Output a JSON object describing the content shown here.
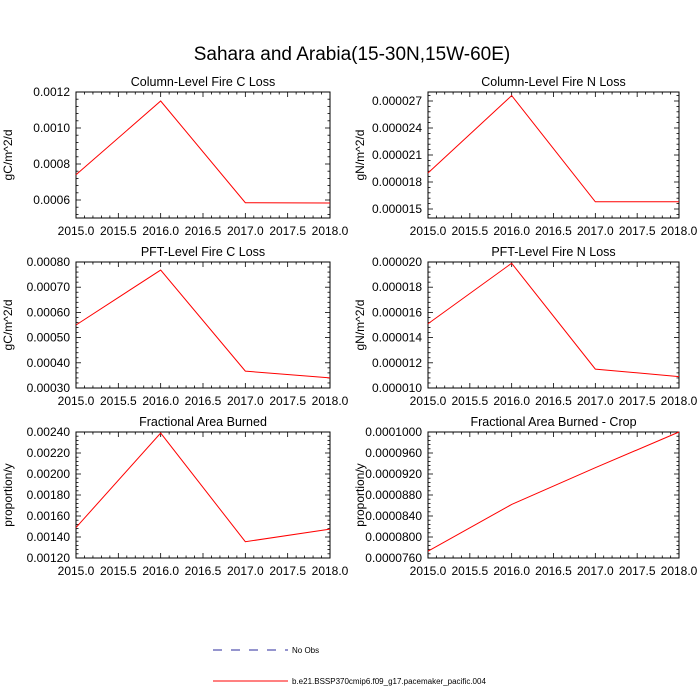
{
  "figure": {
    "title": "Sahara and Arabia(15-30N,15W-60E)"
  },
  "legend": {
    "entries": [
      {
        "label": "No Obs",
        "style": "dashed",
        "color": "#2b2b9e"
      },
      {
        "label": "b.e21.BSSP370cmip6.f09_g17.pacemaker_pacific.004",
        "style": "solid",
        "color": "#ff0000"
      }
    ]
  },
  "chart_data": [
    {
      "type": "line",
      "title": "Column-Level Fire C Loss",
      "ylabel": "gC/m^2/d",
      "xlim": [
        2015.0,
        2018.0
      ],
      "ylim": [
        0.0005,
        0.0012
      ],
      "xticks": [
        "2015.0",
        "2015.5",
        "2016.0",
        "2016.5",
        "2017.0",
        "2017.5",
        "2018.0"
      ],
      "yticks": [
        "0.0006",
        "0.0008",
        "0.0010",
        "0.0012"
      ],
      "yticks_values": [
        0.0006,
        0.0008,
        0.001,
        0.0012
      ],
      "x": [
        2015,
        2016,
        2017,
        2018
      ],
      "series": [
        {
          "color": "#ff0000",
          "values": [
            0.00074,
            0.00115,
            0.000585,
            0.000583
          ]
        }
      ]
    },
    {
      "type": "line",
      "title": "Column-Level Fire N Loss",
      "ylabel": "gN/m^2/d",
      "xlim": [
        2015.0,
        2018.0
      ],
      "ylim": [
        1.4e-05,
        2.8e-05
      ],
      "xticks": [
        "2015.0",
        "2015.5",
        "2016.0",
        "2016.5",
        "2017.0",
        "2017.5",
        "2018.0"
      ],
      "yticks": [
        "0.000015",
        "0.000018",
        "0.000021",
        "0.000024",
        "0.000027"
      ],
      "yticks_values": [
        1.5e-05,
        1.8e-05,
        2.1e-05,
        2.4e-05,
        2.7e-05
      ],
      "x": [
        2015,
        2016,
        2017,
        2018
      ],
      "series": [
        {
          "color": "#ff0000",
          "values": [
            1.9e-05,
            2.76e-05,
            1.58e-05,
            1.58e-05
          ]
        }
      ]
    },
    {
      "type": "line",
      "title": "PFT-Level Fire C Loss",
      "ylabel": "gC/m^2/d",
      "xlim": [
        2015.0,
        2018.0
      ],
      "ylim": [
        0.0003,
        0.0008
      ],
      "xticks": [
        "2015.0",
        "2015.5",
        "2016.0",
        "2016.5",
        "2017.0",
        "2017.5",
        "2018.0"
      ],
      "yticks": [
        "0.00030",
        "0.00040",
        "0.00050",
        "0.00060",
        "0.00070",
        "0.00080"
      ],
      "yticks_values": [
        0.0003,
        0.0004,
        0.0005,
        0.0006,
        0.0007,
        0.0008
      ],
      "x": [
        2015,
        2016,
        2017,
        2018
      ],
      "series": [
        {
          "color": "#ff0000",
          "values": [
            0.00055,
            0.000768,
            0.000367,
            0.00034
          ]
        }
      ]
    },
    {
      "type": "line",
      "title": "PFT-Level Fire N Loss",
      "ylabel": "gN/m^2/d",
      "xlim": [
        2015.0,
        2018.0
      ],
      "ylim": [
        1e-05,
        2e-05
      ],
      "xticks": [
        "2015.0",
        "2015.5",
        "2016.0",
        "2016.5",
        "2017.0",
        "2017.5",
        "2018.0"
      ],
      "yticks": [
        "0.000010",
        "0.000012",
        "0.000014",
        "0.000016",
        "0.000018",
        "0.000020"
      ],
      "yticks_values": [
        1e-05,
        1.2e-05,
        1.4e-05,
        1.6e-05,
        1.8e-05,
        2e-05
      ],
      "x": [
        2015,
        2016,
        2017,
        2018
      ],
      "series": [
        {
          "color": "#ff0000",
          "values": [
            1.51e-05,
            1.99e-05,
            1.15e-05,
            1.09e-05
          ]
        }
      ]
    },
    {
      "type": "line",
      "title": "Fractional Area Burned",
      "ylabel": "proportion/y",
      "xlim": [
        2015.0,
        2018.0
      ],
      "ylim": [
        0.0012,
        0.0024
      ],
      "xticks": [
        "2015.0",
        "2015.5",
        "2016.0",
        "2016.5",
        "2017.0",
        "2017.5",
        "2018.0"
      ],
      "yticks": [
        "0.00120",
        "0.00140",
        "0.00160",
        "0.00180",
        "0.00200",
        "0.00220",
        "0.00240"
      ],
      "yticks_values": [
        0.0012,
        0.0014,
        0.0016,
        0.0018,
        0.002,
        0.0022,
        0.0024
      ],
      "x": [
        2015,
        2016,
        2017,
        2018
      ],
      "series": [
        {
          "color": "#ff0000",
          "values": [
            0.00149,
            0.00239,
            0.001355,
            0.001475
          ]
        }
      ]
    },
    {
      "type": "line",
      "title": "Fractional Area Burned - Crop",
      "ylabel": "proportion/y",
      "xlim": [
        2015.0,
        2018.0
      ],
      "ylim": [
        7.6e-05,
        0.0001
      ],
      "xticks": [
        "2015.0",
        "2015.5",
        "2016.0",
        "2016.5",
        "2017.0",
        "2017.5",
        "2018.0"
      ],
      "yticks": [
        "0.0000760",
        "0.0000800",
        "0.0000840",
        "0.0000880",
        "0.0000920",
        "0.0000960",
        "0.0001000"
      ],
      "yticks_values": [
        7.6e-05,
        8e-05,
        8.4e-05,
        8.8e-05,
        9.2e-05,
        9.6e-05,
        0.0001
      ],
      "x": [
        2015,
        2016,
        2017,
        2018
      ],
      "series": [
        {
          "color": "#ff0000",
          "values": [
            7.73e-05,
            8.62e-05,
            9.32e-05,
            0.0001
          ]
        }
      ]
    }
  ]
}
